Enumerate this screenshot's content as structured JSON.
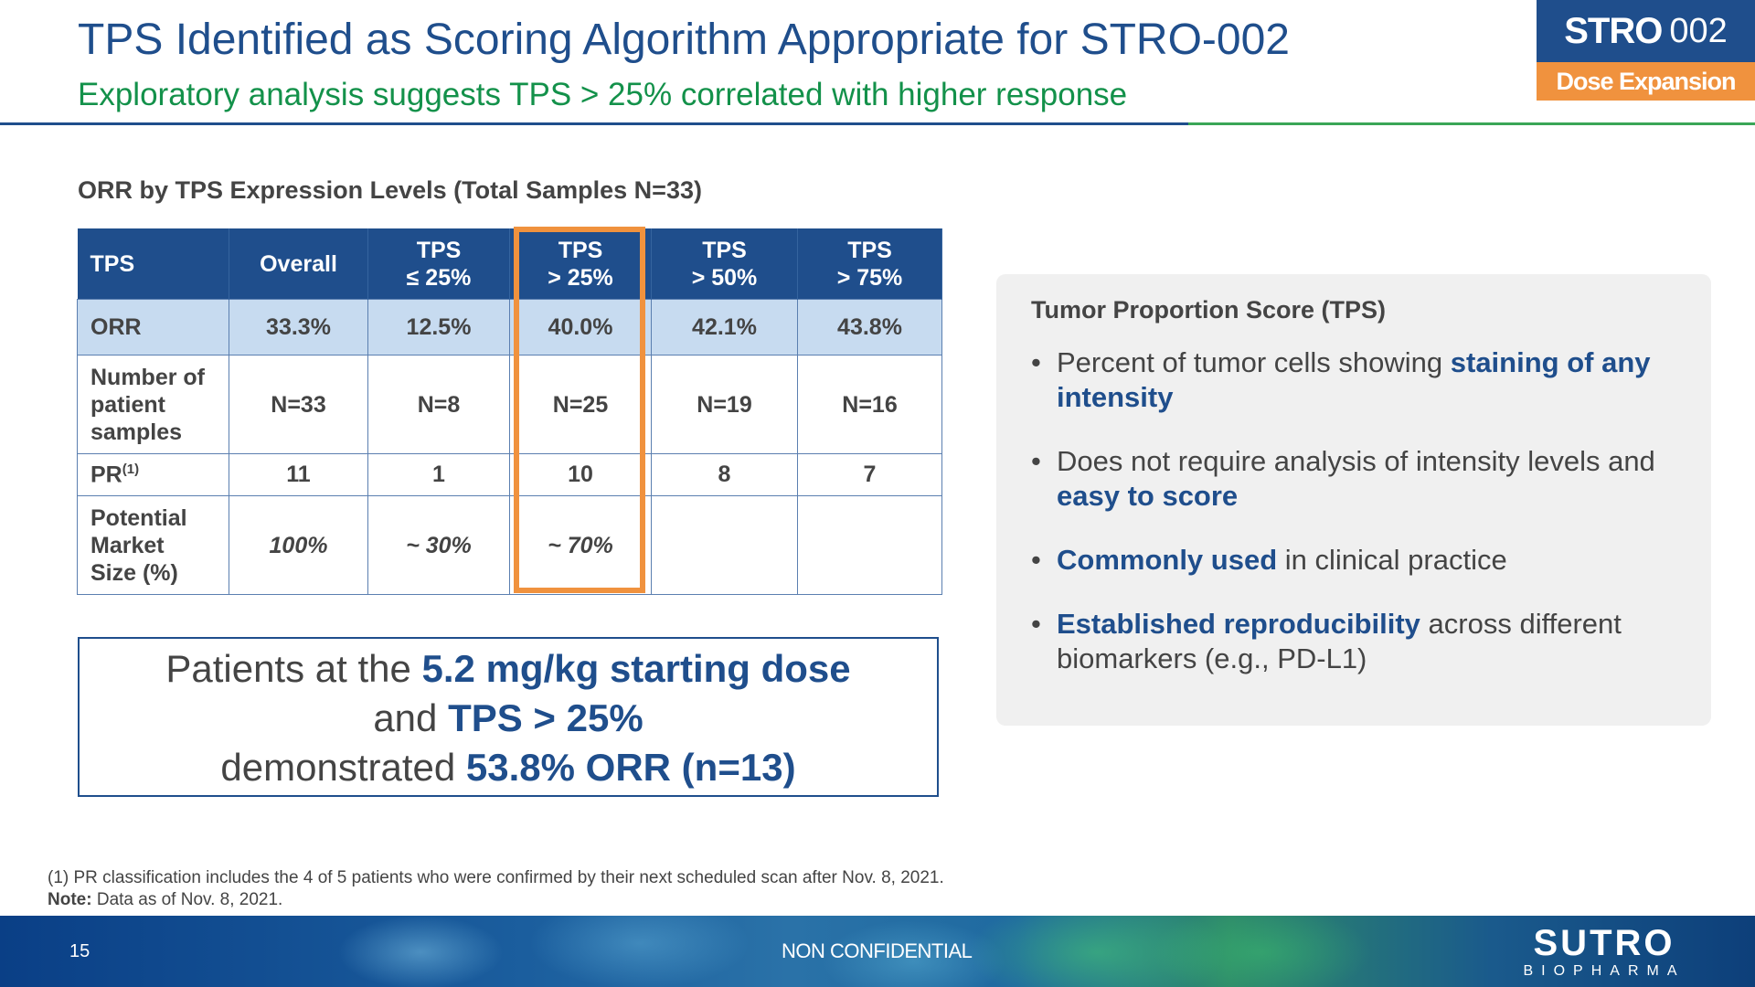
{
  "header": {
    "title": "TPS Identified as Scoring Algorithm Appropriate for STRO-002",
    "subtitle": "Exploratory analysis suggests TPS > 25% correlated with higher response",
    "badge_main": "STRO",
    "badge_num": "002",
    "badge_tag": "Dose Expansion"
  },
  "table": {
    "title": "ORR by TPS Expression Levels (Total Samples N=33)",
    "headers": [
      {
        "line1": "TPS",
        "line2": ""
      },
      {
        "line1": "Overall",
        "line2": ""
      },
      {
        "line1": "TPS",
        "line2": "≤ 25%"
      },
      {
        "line1": "TPS",
        "line2": "> 25%"
      },
      {
        "line1": "TPS",
        "line2": "> 50%"
      },
      {
        "line1": "TPS",
        "line2": "> 75%"
      }
    ],
    "rows": {
      "orr": {
        "label": "ORR",
        "cells": [
          "33.3%",
          "12.5%",
          "40.0%",
          "42.1%",
          "43.8%"
        ]
      },
      "num": {
        "label_lines": [
          "Number of",
          "patient",
          "samples"
        ],
        "cells": [
          "N=33",
          "N=8",
          "N=25",
          "N=19",
          "N=16"
        ]
      },
      "pr": {
        "label": "PR",
        "sup": "(1)",
        "cells": [
          "11",
          "1",
          "10",
          "8",
          "7"
        ]
      },
      "market": {
        "label_lines": [
          "Potential",
          "Market",
          "Size (%)"
        ],
        "cells": [
          "100%",
          "~ 30%",
          "~ 70%",
          "",
          ""
        ]
      }
    },
    "highlight_color": "#f0923e"
  },
  "callout": {
    "l1a": "Patients at the ",
    "l1b": "5.2 mg/kg starting dose",
    "l2a": "and ",
    "l2b": "TPS > 25%",
    "l3a": "demonstrated ",
    "l3b": "53.8% ORR (n=13)"
  },
  "panel": {
    "title": "Tumor Proportion Score (TPS)",
    "bullets": [
      {
        "a": "Percent of tumor cells showing ",
        "b": "staining of any intensity",
        "c": ""
      },
      {
        "a": "Does not require analysis of intensity levels and ",
        "b": "easy to score",
        "c": ""
      },
      {
        "a": "",
        "b": "Commonly used",
        "c": " in clinical practice"
      },
      {
        "a": "",
        "b": "Established reproducibility",
        "c": " across different biomarkers (e.g., PD-L1)"
      }
    ]
  },
  "footnotes": {
    "note1": "(1) PR classification includes the 4 of 5 patients who were confirmed by their next scheduled scan after Nov. 8, 2021.",
    "note_label": "Note:",
    "note_text": " Data as of Nov. 8, 2021."
  },
  "footer": {
    "page": "15",
    "classification": "NON CONFIDENTIAL",
    "logo_main": "SUTRO",
    "logo_sub": "BIOPHARMA"
  },
  "colors": {
    "brand_blue": "#1f4e8c",
    "brand_green": "#13914a",
    "accent_orange": "#f0923e",
    "row_highlight": "#c7dbf0"
  }
}
